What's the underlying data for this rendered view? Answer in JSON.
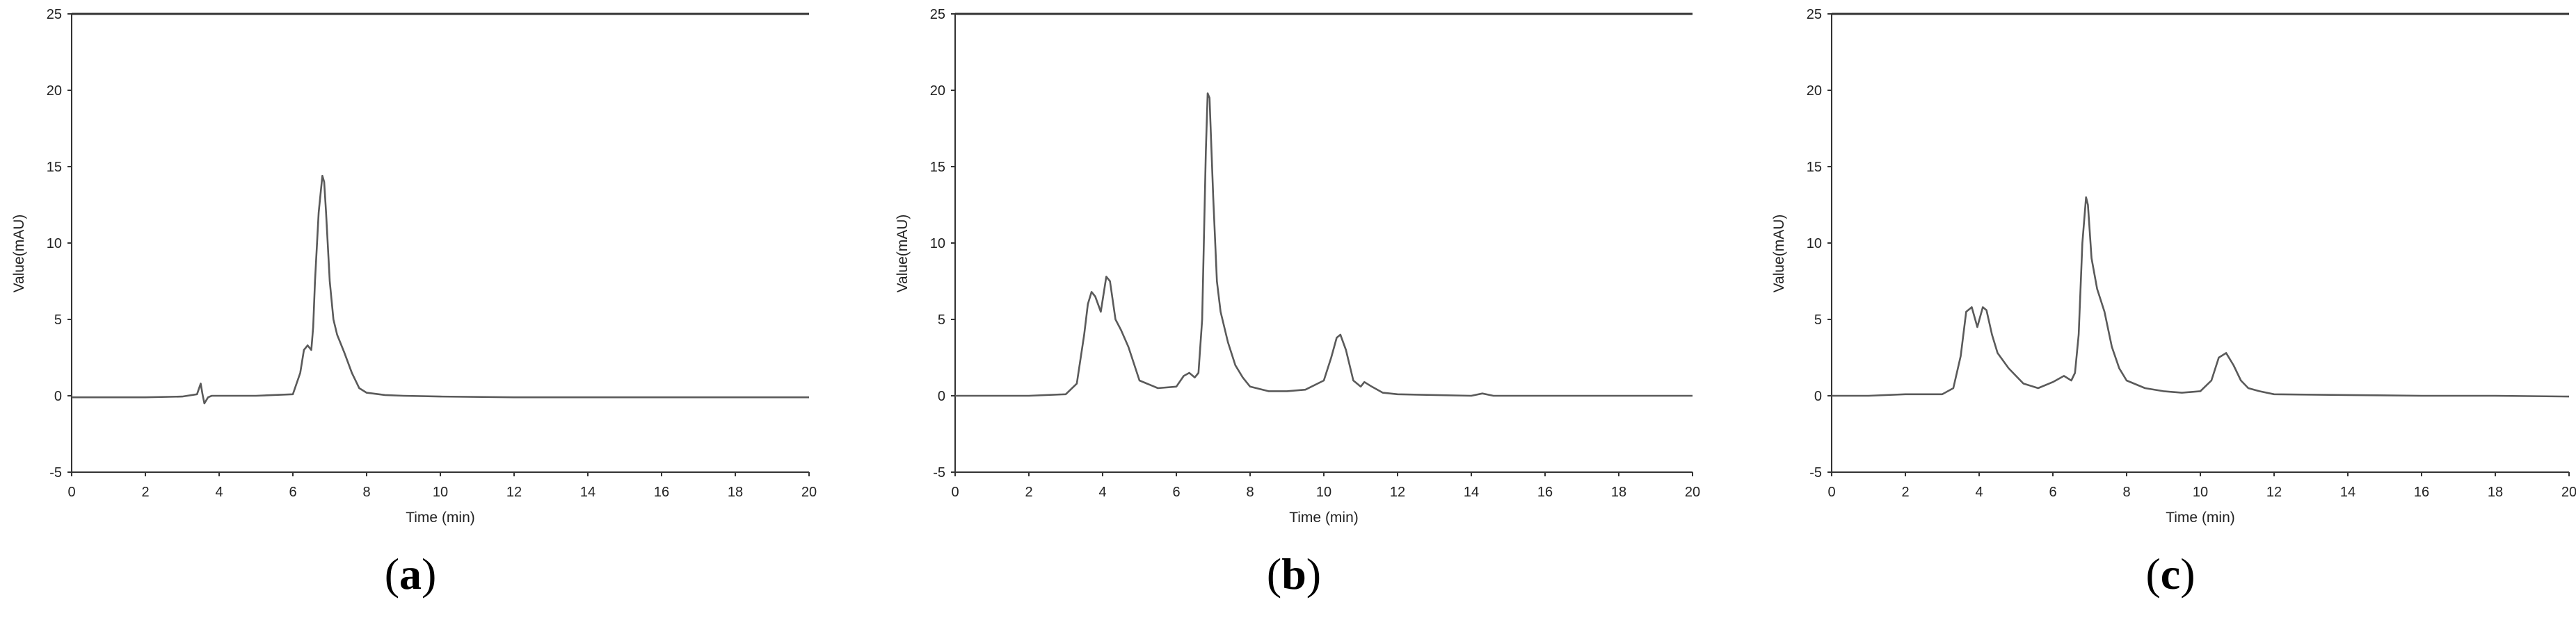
{
  "chart_data": [
    {
      "type": "line",
      "panel_label": "a",
      "xlabel": "Time (min)",
      "ylabel": "Value(mAU)",
      "xlim": [
        0,
        20
      ],
      "ylim": [
        -5,
        25
      ],
      "xticks": [
        0,
        2,
        4,
        6,
        8,
        10,
        12,
        14,
        16,
        18,
        20
      ],
      "yticks": [
        -5,
        0,
        5,
        10,
        15,
        20,
        25
      ],
      "top_border": true,
      "series": [
        {
          "color": "#5a5a5a",
          "x": [
            0,
            1,
            2,
            3,
            3.4,
            3.5,
            3.55,
            3.6,
            3.7,
            3.8,
            4,
            5,
            6,
            6.2,
            6.3,
            6.4,
            6.5,
            6.55,
            6.6,
            6.7,
            6.8,
            6.85,
            6.9,
            7.0,
            7.1,
            7.2,
            7.4,
            7.6,
            7.8,
            8.0,
            8.5,
            9,
            10,
            12,
            14,
            16,
            18,
            20
          ],
          "y": [
            -0.1,
            -0.1,
            -0.1,
            -0.05,
            0.1,
            0.8,
            0.1,
            -0.5,
            -0.1,
            0.0,
            0.0,
            0.0,
            0.1,
            1.5,
            3.0,
            3.3,
            3.0,
            4.5,
            7.5,
            12.0,
            14.4,
            14.0,
            12.0,
            7.5,
            5.0,
            4.0,
            2.8,
            1.5,
            0.5,
            0.2,
            0.05,
            0.0,
            -0.05,
            -0.1,
            -0.1,
            -0.1,
            -0.1,
            -0.1
          ]
        }
      ]
    },
    {
      "type": "line",
      "panel_label": "b",
      "xlabel": "Time (min)",
      "ylabel": "Value(mAU)",
      "xlim": [
        0,
        20
      ],
      "ylim": [
        -5,
        25
      ],
      "xticks": [
        0,
        2,
        4,
        6,
        8,
        10,
        12,
        14,
        16,
        18,
        20
      ],
      "yticks": [
        -5,
        0,
        5,
        10,
        15,
        20,
        25
      ],
      "top_border": true,
      "series": [
        {
          "color": "#5a5a5a",
          "x": [
            0,
            1,
            2,
            3,
            3.3,
            3.5,
            3.6,
            3.7,
            3.8,
            3.95,
            4.1,
            4.2,
            4.35,
            4.5,
            4.7,
            5.0,
            5.5,
            6.0,
            6.2,
            6.35,
            6.5,
            6.6,
            6.7,
            6.8,
            6.85,
            6.9,
            7.0,
            7.1,
            7.2,
            7.4,
            7.6,
            7.8,
            8.0,
            8.5,
            9.0,
            9.5,
            10.0,
            10.2,
            10.35,
            10.45,
            10.6,
            10.8,
            11.0,
            11.1,
            11.3,
            11.6,
            12.0,
            14,
            14.3,
            14.6,
            16,
            18,
            20
          ],
          "y": [
            0.0,
            0.0,
            0.0,
            0.1,
            0.8,
            4.0,
            6.0,
            6.8,
            6.5,
            5.5,
            7.8,
            7.5,
            5.0,
            4.3,
            3.2,
            1.0,
            0.5,
            0.6,
            1.3,
            1.5,
            1.2,
            1.5,
            5.0,
            16.0,
            19.8,
            19.5,
            13.0,
            7.5,
            5.5,
            3.5,
            2.0,
            1.2,
            0.6,
            0.3,
            0.3,
            0.4,
            1.0,
            2.5,
            3.8,
            4.0,
            3.0,
            1.0,
            0.6,
            0.9,
            0.6,
            0.2,
            0.1,
            0.0,
            0.15,
            0.0,
            0.0,
            0.0,
            0.0
          ]
        }
      ]
    },
    {
      "type": "line",
      "panel_label": "c",
      "xlabel": "Time (min)",
      "ylabel": "Value(mAU)",
      "xlim": [
        0,
        20
      ],
      "ylim": [
        -5,
        25
      ],
      "xticks": [
        0,
        2,
        4,
        6,
        8,
        10,
        12,
        14,
        16,
        18,
        20
      ],
      "yticks": [
        -5,
        0,
        5,
        10,
        15,
        20,
        25
      ],
      "top_border": true,
      "series": [
        {
          "color": "#5a5a5a",
          "x": [
            0,
            1,
            2,
            3,
            3.3,
            3.5,
            3.65,
            3.8,
            3.95,
            4.1,
            4.2,
            4.35,
            4.5,
            4.8,
            5.2,
            5.6,
            6.0,
            6.3,
            6.5,
            6.6,
            6.7,
            6.8,
            6.9,
            6.95,
            7.05,
            7.2,
            7.4,
            7.6,
            7.8,
            8.0,
            8.5,
            9.0,
            9.5,
            10.0,
            10.3,
            10.5,
            10.7,
            10.9,
            11.1,
            11.3,
            11.6,
            12.0,
            14,
            16,
            18,
            20
          ],
          "y": [
            0.0,
            0.0,
            0.1,
            0.1,
            0.5,
            2.6,
            5.5,
            5.8,
            4.5,
            5.8,
            5.6,
            4.0,
            2.8,
            1.8,
            0.8,
            0.5,
            0.9,
            1.3,
            1.0,
            1.5,
            4.0,
            10.0,
            13.0,
            12.5,
            9.0,
            7.0,
            5.5,
            3.2,
            1.8,
            1.0,
            0.5,
            0.3,
            0.2,
            0.3,
            1.0,
            2.5,
            2.8,
            2.0,
            1.0,
            0.5,
            0.3,
            0.1,
            0.05,
            0.0,
            0.0,
            -0.05
          ]
        }
      ]
    }
  ],
  "captions": [
    {
      "open": "(",
      "letter": "a",
      "close": ")"
    },
    {
      "open": "(",
      "letter": "b",
      "close": ")"
    },
    {
      "open": "(",
      "letter": "c",
      "close": ")"
    }
  ],
  "colors": {
    "trace": "#5a5a5a",
    "axis": "#333333",
    "background": "#ffffff"
  }
}
